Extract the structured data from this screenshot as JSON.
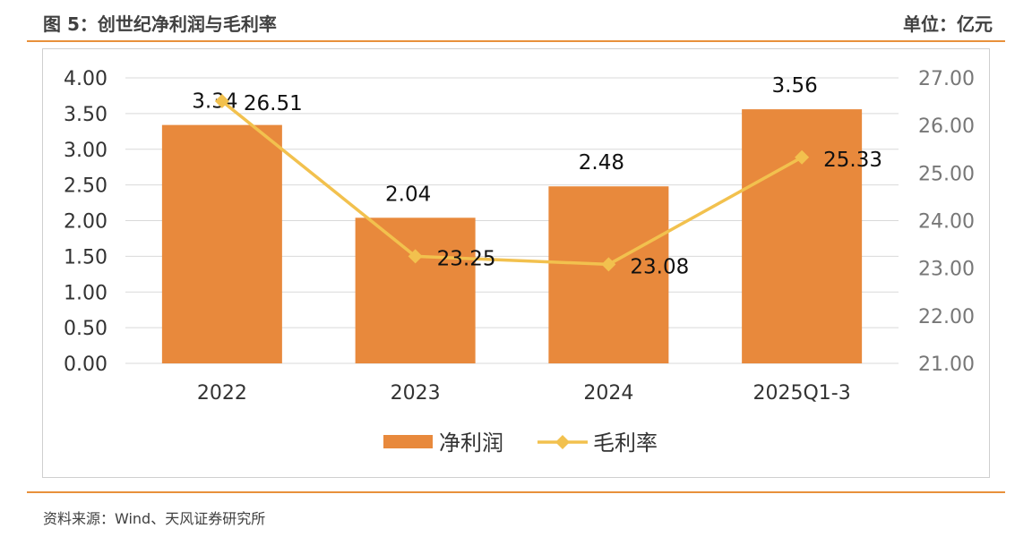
{
  "header": {
    "title": "图 5：创世纪净利润与毛利率",
    "unit": "单位：亿元"
  },
  "source": "资料来源：Wind、天风证券研究所",
  "colors": {
    "bar": "#e8893c",
    "line": "#f2c14e",
    "grid": "#d9d9d9",
    "rule": "#e8913b"
  },
  "chart_data": {
    "type": "bar",
    "categories": [
      "2022",
      "2023",
      "2024",
      "2025Q1-3"
    ],
    "series": [
      {
        "name": "净利润",
        "type": "bar",
        "axis": "left",
        "values": [
          3.34,
          2.04,
          2.48,
          3.56
        ],
        "labels": [
          "3.34",
          "2.04",
          "2.48",
          "3.56"
        ]
      },
      {
        "name": "毛利率",
        "type": "line",
        "axis": "right",
        "values": [
          26.51,
          23.25,
          23.08,
          25.33
        ],
        "labels": [
          "26.51",
          "23.25",
          "23.08",
          "25.33"
        ]
      }
    ],
    "left_axis": {
      "min": 0,
      "max": 4,
      "step": 0.5,
      "ticks": [
        "0.00",
        "0.50",
        "1.00",
        "1.50",
        "2.00",
        "2.50",
        "3.00",
        "3.50",
        "4.00"
      ]
    },
    "right_axis": {
      "min": 21,
      "max": 27,
      "step": 1,
      "ticks": [
        "21.00",
        "22.00",
        "23.00",
        "24.00",
        "25.00",
        "26.00",
        "27.00"
      ]
    },
    "grid": true,
    "legend_position": "bottom"
  }
}
